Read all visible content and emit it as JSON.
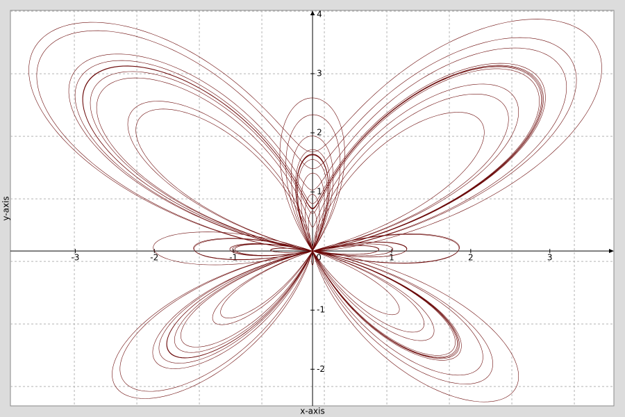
{
  "chart_data": {
    "type": "line",
    "xlabel": "x-axis",
    "ylabel": "y-axis",
    "xlim": [
      -3.82,
      3.81
    ],
    "ylim": [
      -2.62,
      4.07
    ],
    "xticks": [
      -3,
      -2,
      -1,
      0,
      1,
      2,
      3
    ],
    "yticks": [
      -2,
      -1,
      1,
      2,
      3,
      4
    ],
    "color": "#6b0a0a"
  }
}
